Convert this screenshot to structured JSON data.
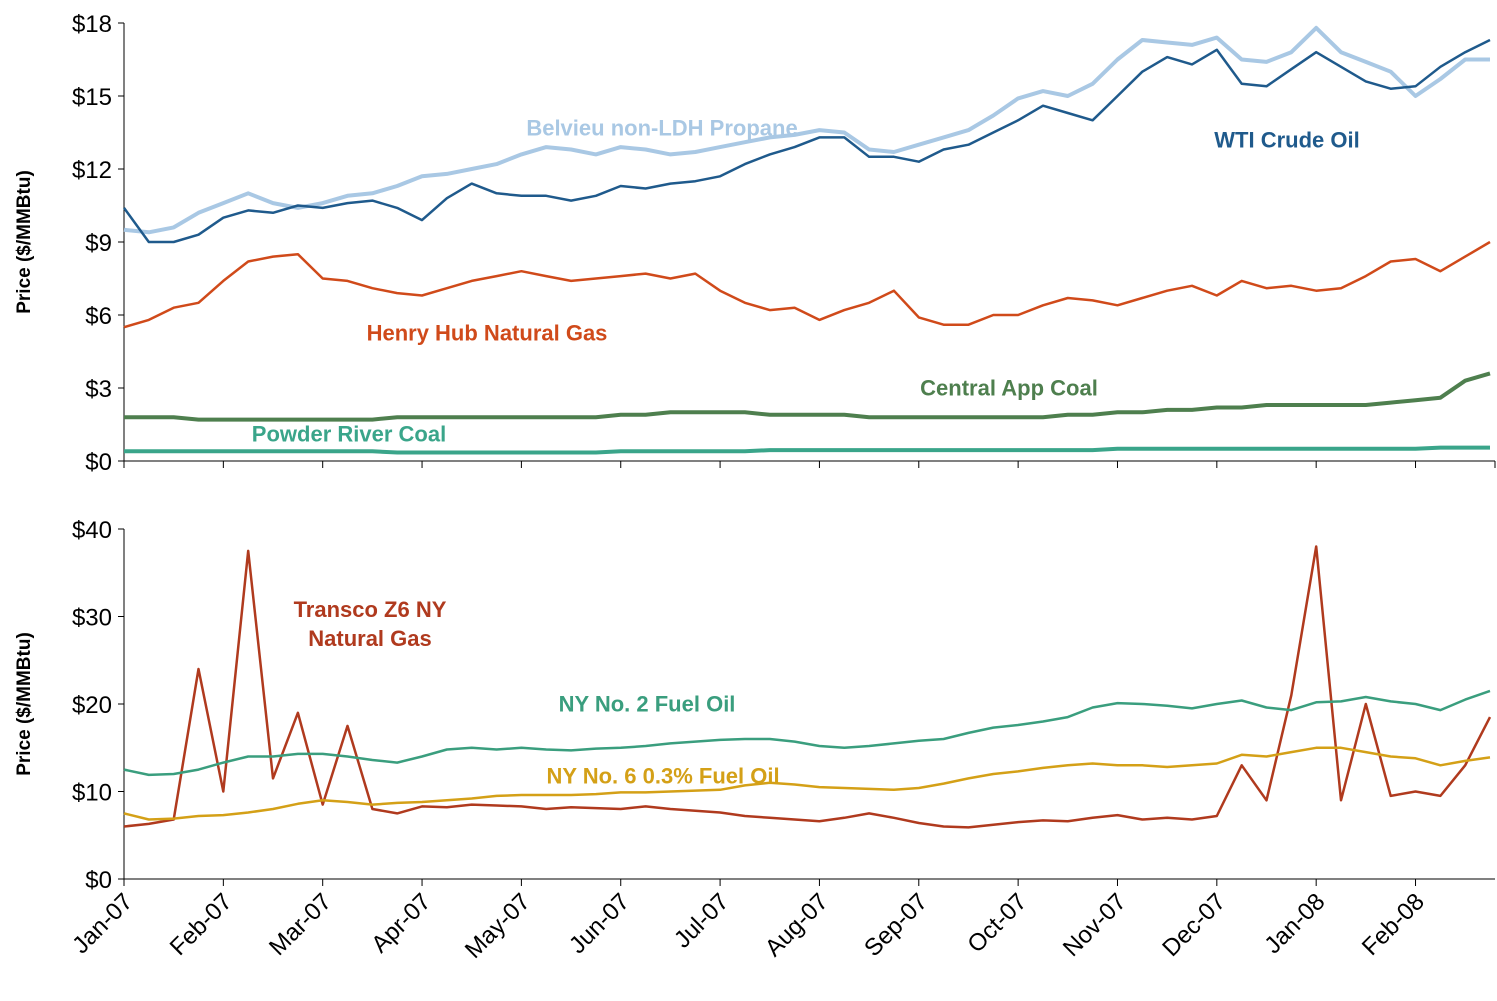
{
  "chart_data": [
    {
      "type": "line",
      "y_label": "Price ($/MMBtu)",
      "x": [
        0,
        0.25,
        0.5,
        0.75,
        1,
        1.25,
        1.5,
        1.75,
        2,
        2.25,
        2.5,
        2.75,
        3,
        3.25,
        3.5,
        3.75,
        4,
        4.25,
        4.5,
        4.75,
        5,
        5.25,
        5.5,
        5.75,
        6,
        6.25,
        6.5,
        6.75,
        7,
        7.25,
        7.5,
        7.75,
        8,
        8.25,
        8.5,
        8.75,
        9,
        9.25,
        9.5,
        9.75,
        10,
        10.25,
        10.5,
        10.75,
        11,
        11.25,
        11.5,
        11.75,
        12,
        12.25,
        12.5,
        12.75,
        13,
        13.25,
        13.5,
        13.75
      ],
      "xlim": [
        0,
        13.8
      ],
      "xticks": [
        0,
        1,
        2,
        3,
        4,
        5,
        6,
        7,
        8,
        9,
        10,
        11,
        12,
        13,
        13.8
      ],
      "ylim": [
        0,
        18
      ],
      "yticks": [
        {
          "value": 0,
          "label": "$0"
        },
        {
          "value": 3,
          "label": "$3"
        },
        {
          "value": 6,
          "label": "$6"
        },
        {
          "value": 9,
          "label": "$9"
        },
        {
          "value": 12,
          "label": "$12"
        },
        {
          "value": 15,
          "label": "$15"
        },
        {
          "value": 18,
          "label": "$18"
        }
      ],
      "series": [
        {
          "name": "Belvieu non-LDH Propane",
          "color": "#a9c8e4",
          "values": [
            9.5,
            9.4,
            9.6,
            10.2,
            10.6,
            11.0,
            10.6,
            10.4,
            10.6,
            10.9,
            11.0,
            11.3,
            11.7,
            11.8,
            12.0,
            12.2,
            12.6,
            12.9,
            12.8,
            12.6,
            12.9,
            12.8,
            12.6,
            12.7,
            12.9,
            13.1,
            13.3,
            13.4,
            13.6,
            13.5,
            12.8,
            12.7,
            13.0,
            13.3,
            13.6,
            14.2,
            14.9,
            15.2,
            15.0,
            15.5,
            16.5,
            17.3,
            17.2,
            17.1,
            17.4,
            16.5,
            16.4,
            16.8,
            17.8,
            16.8,
            16.4,
            16.0,
            15.0,
            15.7,
            16.5,
            16.5
          ]
        },
        {
          "name": "WTI Crude Oil",
          "color": "#1f5a8c",
          "values": [
            10.4,
            9.0,
            9.0,
            9.3,
            10.0,
            10.3,
            10.2,
            10.5,
            10.4,
            10.6,
            10.7,
            10.4,
            9.9,
            10.8,
            11.4,
            11.0,
            10.9,
            10.9,
            10.7,
            10.9,
            11.3,
            11.2,
            11.4,
            11.5,
            11.7,
            12.2,
            12.6,
            12.9,
            13.3,
            13.3,
            12.5,
            12.5,
            12.3,
            12.8,
            13.0,
            13.5,
            14.0,
            14.6,
            14.3,
            14.0,
            15.0,
            16.0,
            16.6,
            16.3,
            16.9,
            15.5,
            15.4,
            16.1,
            16.8,
            16.2,
            15.6,
            15.3,
            15.4,
            16.2,
            16.8,
            17.3
          ]
        },
        {
          "name": "Henry Hub Natural Gas",
          "color": "#d04a1a",
          "values": [
            5.5,
            5.8,
            6.3,
            6.5,
            7.4,
            8.2,
            8.4,
            8.5,
            7.5,
            7.4,
            7.1,
            6.9,
            6.8,
            7.1,
            7.4,
            7.6,
            7.8,
            7.6,
            7.4,
            7.5,
            7.6,
            7.7,
            7.5,
            7.7,
            7.0,
            6.5,
            6.2,
            6.3,
            5.8,
            6.2,
            6.5,
            7.0,
            5.9,
            5.6,
            5.6,
            6.0,
            6.0,
            6.4,
            6.7,
            6.6,
            6.4,
            6.7,
            7.0,
            7.2,
            6.8,
            7.4,
            7.1,
            7.2,
            7.0,
            7.1,
            7.6,
            8.2,
            8.3,
            7.8,
            8.4,
            9.0
          ]
        },
        {
          "name": "Central App Coal",
          "color": "#4e7f4e",
          "values": [
            1.8,
            1.8,
            1.8,
            1.7,
            1.7,
            1.7,
            1.7,
            1.7,
            1.7,
            1.7,
            1.7,
            1.8,
            1.8,
            1.8,
            1.8,
            1.8,
            1.8,
            1.8,
            1.8,
            1.8,
            1.9,
            1.9,
            2.0,
            2.0,
            2.0,
            2.0,
            1.9,
            1.9,
            1.9,
            1.9,
            1.8,
            1.8,
            1.8,
            1.8,
            1.8,
            1.8,
            1.8,
            1.8,
            1.9,
            1.9,
            2.0,
            2.0,
            2.1,
            2.1,
            2.2,
            2.2,
            2.3,
            2.3,
            2.3,
            2.3,
            2.3,
            2.4,
            2.5,
            2.6,
            3.3,
            3.6
          ]
        },
        {
          "name": "Powder River Coal",
          "color": "#3aa58a",
          "values": [
            0.4,
            0.4,
            0.4,
            0.4,
            0.4,
            0.4,
            0.4,
            0.4,
            0.4,
            0.4,
            0.4,
            0.35,
            0.35,
            0.35,
            0.35,
            0.35,
            0.35,
            0.35,
            0.35,
            0.35,
            0.4,
            0.4,
            0.4,
            0.4,
            0.4,
            0.4,
            0.45,
            0.45,
            0.45,
            0.45,
            0.45,
            0.45,
            0.45,
            0.45,
            0.45,
            0.45,
            0.45,
            0.45,
            0.45,
            0.45,
            0.5,
            0.5,
            0.5,
            0.5,
            0.5,
            0.5,
            0.5,
            0.5,
            0.5,
            0.5,
            0.5,
            0.5,
            0.5,
            0.55,
            0.55,
            0.55
          ]
        }
      ]
    },
    {
      "type": "line",
      "y_label": "Price ($/MMBtu)",
      "x": [
        0,
        0.25,
        0.5,
        0.75,
        1,
        1.25,
        1.5,
        1.75,
        2,
        2.25,
        2.5,
        2.75,
        3,
        3.25,
        3.5,
        3.75,
        4,
        4.25,
        4.5,
        4.75,
        5,
        5.25,
        5.5,
        5.75,
        6,
        6.25,
        6.5,
        6.75,
        7,
        7.25,
        7.5,
        7.75,
        8,
        8.25,
        8.5,
        8.75,
        9,
        9.25,
        9.5,
        9.75,
        10,
        10.25,
        10.5,
        10.75,
        11,
        11.25,
        11.5,
        11.75,
        12,
        12.25,
        12.5,
        12.75,
        13,
        13.25,
        13.5,
        13.75
      ],
      "xlim": [
        0,
        13.8
      ],
      "xticks": [
        {
          "value": 0,
          "label": "Jan-07"
        },
        {
          "value": 1,
          "label": "Feb-07"
        },
        {
          "value": 2,
          "label": "Mar-07"
        },
        {
          "value": 3,
          "label": "Apr-07"
        },
        {
          "value": 4,
          "label": "May-07"
        },
        {
          "value": 5,
          "label": "Jun-07"
        },
        {
          "value": 6,
          "label": "Jul-07"
        },
        {
          "value": 7,
          "label": "Aug-07"
        },
        {
          "value": 8,
          "label": "Sep-07"
        },
        {
          "value": 9,
          "label": "Oct-07"
        },
        {
          "value": 10,
          "label": "Nov-07"
        },
        {
          "value": 11,
          "label": "Dec-07"
        },
        {
          "value": 12,
          "label": "Jan-08"
        },
        {
          "value": 13,
          "label": "Feb-08"
        }
      ],
      "ylim": [
        0,
        40
      ],
      "yticks": [
        {
          "value": 0,
          "label": "$0"
        },
        {
          "value": 10,
          "label": "$10"
        },
        {
          "value": 20,
          "label": "$20"
        },
        {
          "value": 30,
          "label": "$30"
        },
        {
          "value": 40,
          "label": "$40"
        }
      ],
      "series": [
        {
          "name": "Transco Z6 NY Natural Gas",
          "color": "#b03a1e",
          "values": [
            6.0,
            6.3,
            6.8,
            24.0,
            10.0,
            37.5,
            11.5,
            19.0,
            8.5,
            17.5,
            8.0,
            7.5,
            8.3,
            8.2,
            8.5,
            8.4,
            8.3,
            8.0,
            8.2,
            8.1,
            8.0,
            8.3,
            8.0,
            7.8,
            7.6,
            7.2,
            7.0,
            6.8,
            6.6,
            7.0,
            7.5,
            7.0,
            6.4,
            6.0,
            5.9,
            6.2,
            6.5,
            6.7,
            6.6,
            7.0,
            7.3,
            6.8,
            7.0,
            6.8,
            7.2,
            13.0,
            9.0,
            21.0,
            38.0,
            9.0,
            20.0,
            9.5,
            10.0,
            9.5,
            13.0,
            18.5
          ]
        },
        {
          "name": "NY No. 2 Fuel Oil",
          "color": "#3a9e7e",
          "values": [
            12.5,
            11.9,
            12.0,
            12.5,
            13.3,
            14.0,
            14.0,
            14.3,
            14.3,
            14.0,
            13.6,
            13.3,
            14.0,
            14.8,
            15.0,
            14.8,
            15.0,
            14.8,
            14.7,
            14.9,
            15.0,
            15.2,
            15.5,
            15.7,
            15.9,
            16.0,
            16.0,
            15.7,
            15.2,
            15.0,
            15.2,
            15.5,
            15.8,
            16.0,
            16.7,
            17.3,
            17.6,
            18.0,
            18.5,
            19.6,
            20.1,
            20.0,
            19.8,
            19.5,
            20.0,
            20.4,
            19.6,
            19.3,
            20.2,
            20.3,
            20.8,
            20.3,
            20.0,
            19.3,
            20.5,
            21.5
          ]
        },
        {
          "name": "NY No. 6 0.3% Fuel Oil",
          "color": "#d4a017",
          "values": [
            7.5,
            6.8,
            6.9,
            7.2,
            7.3,
            7.6,
            8.0,
            8.6,
            9.0,
            8.8,
            8.5,
            8.7,
            8.8,
            9.0,
            9.2,
            9.5,
            9.6,
            9.6,
            9.6,
            9.7,
            9.9,
            9.9,
            10.0,
            10.1,
            10.2,
            10.7,
            11.0,
            10.8,
            10.5,
            10.4,
            10.3,
            10.2,
            10.4,
            10.9,
            11.5,
            12.0,
            12.3,
            12.7,
            13.0,
            13.2,
            13.0,
            13.0,
            12.8,
            13.0,
            13.2,
            14.2,
            14.0,
            14.5,
            15.0,
            15.0,
            14.5,
            14.0,
            13.8,
            13.0,
            13.5,
            13.9
          ]
        }
      ]
    }
  ]
}
